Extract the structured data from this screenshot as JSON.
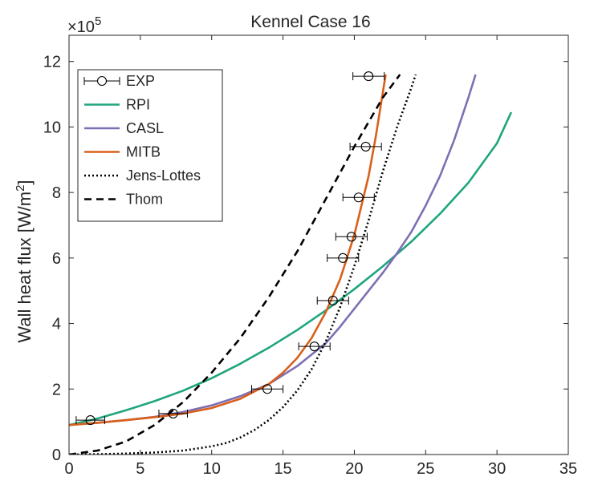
{
  "chart_data": {
    "type": "line",
    "title": "Kennel Case 16",
    "xlabel": "",
    "ylabel": "Wall heat flux [W/m²]",
    "ylabel_main": "Wall heat flux [W/m",
    "ylabel_sup": "2",
    "ylabel_end": "]",
    "y_multiplier_text": "×10",
    "y_multiplier_exp": "5",
    "xlim": [
      0,
      35
    ],
    "ylim": [
      0,
      12.8
    ],
    "x_ticks": [
      0,
      5,
      10,
      15,
      20,
      25,
      30,
      35
    ],
    "y_ticks": [
      0,
      2,
      4,
      6,
      8,
      10,
      12
    ],
    "grid": false,
    "legend_position": "top-left",
    "series": [
      {
        "name": "EXP",
        "kind": "errorbar",
        "color": "#000000",
        "points": [
          {
            "x": 1.5,
            "y": 1.05,
            "xerr": 1.0
          },
          {
            "x": 7.3,
            "y": 1.25,
            "xerr": 1.0
          },
          {
            "x": 13.9,
            "y": 2.0,
            "xerr": 1.1
          },
          {
            "x": 17.2,
            "y": 3.3,
            "xerr": 1.1
          },
          {
            "x": 18.5,
            "y": 4.7,
            "xerr": 1.1
          },
          {
            "x": 19.2,
            "y": 6.0,
            "xerr": 1.1
          },
          {
            "x": 19.8,
            "y": 6.65,
            "xerr": 1.1
          },
          {
            "x": 20.3,
            "y": 7.85,
            "xerr": 1.1
          },
          {
            "x": 20.8,
            "y": 9.4,
            "xerr": 1.1
          },
          {
            "x": 21.0,
            "y": 11.55,
            "xerr": 1.1
          }
        ]
      },
      {
        "name": "RPI",
        "kind": "line",
        "color": "#1fa57e",
        "dash": "",
        "x": [
          0,
          2,
          4,
          6,
          8,
          10,
          12,
          14,
          16,
          18,
          20,
          22,
          24,
          26,
          28,
          30,
          31
        ],
        "y": [
          0.9,
          1.1,
          1.35,
          1.63,
          1.95,
          2.33,
          2.77,
          3.26,
          3.8,
          4.4,
          5.05,
          5.75,
          6.5,
          7.35,
          8.3,
          9.5,
          10.45
        ]
      },
      {
        "name": "CASL",
        "kind": "line",
        "color": "#7e6fb4",
        "dash": "",
        "x": [
          0,
          2,
          4,
          6,
          8,
          10,
          12,
          14,
          16,
          18,
          19,
          20,
          21,
          22,
          23,
          24,
          25,
          26,
          27,
          28,
          28.5
        ],
        "y": [
          0.9,
          0.97,
          1.05,
          1.15,
          1.3,
          1.5,
          1.78,
          2.15,
          2.7,
          3.4,
          3.9,
          4.45,
          5.0,
          5.55,
          6.15,
          6.8,
          7.6,
          8.5,
          9.6,
          10.9,
          11.6
        ]
      },
      {
        "name": "MITB",
        "kind": "line",
        "color": "#d95f1a",
        "dash": "",
        "x": [
          0,
          2,
          4,
          6,
          8,
          10,
          12,
          14,
          15,
          16,
          17,
          18,
          19,
          20,
          21,
          21.5,
          22.2
        ],
        "y": [
          0.9,
          0.97,
          1.05,
          1.14,
          1.25,
          1.42,
          1.7,
          2.15,
          2.5,
          2.95,
          3.55,
          4.35,
          5.35,
          6.7,
          8.5,
          9.7,
          11.6
        ]
      },
      {
        "name": "Jens-Lottes",
        "kind": "line",
        "color": "#000000",
        "dash": "2,3",
        "x": [
          0,
          2,
          4,
          6,
          8,
          10,
          11,
          12,
          13,
          14,
          15,
          16,
          17,
          18,
          19,
          20,
          21,
          22,
          23,
          24,
          24.3
        ],
        "y": [
          0.0,
          0.01,
          0.03,
          0.06,
          0.12,
          0.25,
          0.35,
          0.52,
          0.75,
          1.05,
          1.45,
          1.95,
          2.6,
          3.45,
          4.5,
          5.75,
          7.15,
          8.65,
          10.0,
          11.2,
          11.6
        ]
      },
      {
        "name": "Thom",
        "kind": "line",
        "color": "#000000",
        "dash": "9,6",
        "x": [
          0,
          2,
          4,
          6,
          8,
          10,
          12,
          14,
          16,
          18,
          20,
          22,
          23.2
        ],
        "y": [
          0.0,
          0.12,
          0.4,
          0.9,
          1.6,
          2.5,
          3.55,
          4.8,
          6.2,
          7.8,
          9.4,
          10.9,
          11.6
        ]
      }
    ]
  }
}
